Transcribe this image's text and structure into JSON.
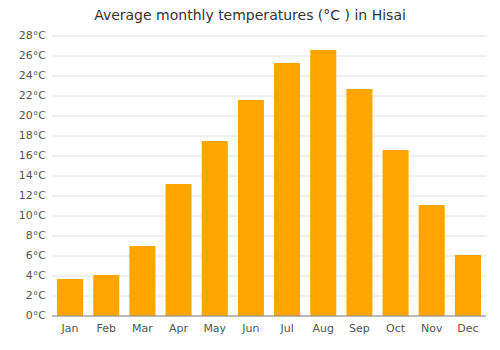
{
  "chart_data": {
    "type": "bar",
    "title": "Average monthly temperatures (°C ) in Hisai",
    "categories": [
      "Jan",
      "Feb",
      "Mar",
      "Apr",
      "May",
      "Jun",
      "Jul",
      "Aug",
      "Sep",
      "Oct",
      "Nov",
      "Dec"
    ],
    "values": [
      3.7,
      4.1,
      7.0,
      13.2,
      17.5,
      21.6,
      25.3,
      26.6,
      22.7,
      16.6,
      11.1,
      6.1
    ],
    "color": "#FFA500",
    "ylim": [
      0,
      28
    ],
    "yticks": [
      {
        "value": 0,
        "label": "0°C"
      },
      {
        "value": 2,
        "label": "2°C"
      },
      {
        "value": 4,
        "label": "4°C"
      },
      {
        "value": 6,
        "label": "6°C"
      },
      {
        "value": 8,
        "label": "8°C"
      },
      {
        "value": 10,
        "label": "10°C"
      },
      {
        "value": 12,
        "label": "12°C"
      },
      {
        "value": 14,
        "label": "14°C"
      },
      {
        "value": 16,
        "label": "16°C"
      },
      {
        "value": 18,
        "label": "18°C"
      },
      {
        "value": 20,
        "label": "20°C"
      },
      {
        "value": 22,
        "label": "22°C"
      },
      {
        "value": 24,
        "label": "24°C"
      },
      {
        "value": 26,
        "label": "26°C"
      },
      {
        "value": 28,
        "label": "28°C"
      }
    ],
    "grid": true
  }
}
